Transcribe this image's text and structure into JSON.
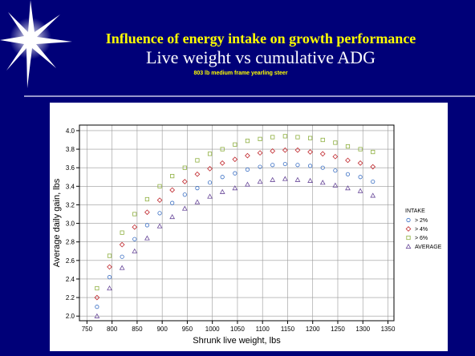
{
  "header": {
    "title": "Influence of energy intake on growth performance",
    "subtitle": "Live weight vs cumulative ADG",
    "note": "803 lb medium frame yearling steer"
  },
  "chart_data": {
    "type": "scatter",
    "x_label": "Shrunk live weight, lbs",
    "y_label": "Average daily gain, lbs",
    "legend_title": "INTAKE",
    "legend": "right",
    "grid": true,
    "xlim": [
      735,
      1362
    ],
    "ylim": [
      1.95,
      4.06
    ],
    "xticks": [
      750,
      800,
      850,
      900,
      950,
      1000,
      1050,
      1100,
      1150,
      1200,
      1250,
      1300,
      1350
    ],
    "yticks": [
      {
        "value": 2.0,
        "label": "2.0"
      },
      2.2,
      2.4,
      2.6,
      2.8,
      {
        "value": 3.0,
        "label": "3.0"
      },
      3.2,
      3.4,
      3.6,
      3.8,
      {
        "value": 4.0,
        "label": "4.0"
      }
    ],
    "x": [
      770,
      795,
      820,
      845,
      870,
      895,
      920,
      945,
      970,
      995,
      1020,
      1045,
      1070,
      1095,
      1120,
      1145,
      1170,
      1195,
      1220,
      1245,
      1270,
      1295,
      1320
    ],
    "series": [
      {
        "name": "> 2%",
        "color": "#3a6fc4",
        "marker": "circle",
        "values": [
          2.1,
          2.42,
          2.64,
          2.83,
          2.98,
          3.11,
          3.22,
          3.31,
          3.38,
          3.44,
          3.5,
          3.54,
          3.58,
          3.61,
          3.63,
          3.64,
          3.63,
          3.62,
          3.6,
          3.57,
          3.53,
          3.5,
          3.45
        ]
      },
      {
        "name": "> 4%",
        "color": "#c0282d",
        "marker": "diamond",
        "values": [
          2.2,
          2.53,
          2.77,
          2.96,
          3.12,
          3.25,
          3.36,
          3.45,
          3.53,
          3.59,
          3.65,
          3.69,
          3.73,
          3.76,
          3.78,
          3.79,
          3.79,
          3.77,
          3.75,
          3.72,
          3.68,
          3.65,
          3.61
        ]
      },
      {
        "name": "> 6%",
        "color": "#8fb040",
        "marker": "square",
        "values": [
          2.3,
          2.65,
          2.9,
          3.1,
          3.26,
          3.4,
          3.51,
          3.6,
          3.68,
          3.75,
          3.8,
          3.85,
          3.89,
          3.91,
          3.93,
          3.94,
          3.93,
          3.92,
          3.9,
          3.87,
          3.83,
          3.8,
          3.77
        ]
      },
      {
        "name": "AVERAGE",
        "color": "#6a4a9a",
        "marker": "triangle",
        "values": [
          2.0,
          2.3,
          2.52,
          2.7,
          2.84,
          2.97,
          3.07,
          3.16,
          3.23,
          3.29,
          3.34,
          3.38,
          3.42,
          3.45,
          3.47,
          3.48,
          3.47,
          3.46,
          3.44,
          3.41,
          3.38,
          3.35,
          3.3
        ]
      }
    ]
  }
}
